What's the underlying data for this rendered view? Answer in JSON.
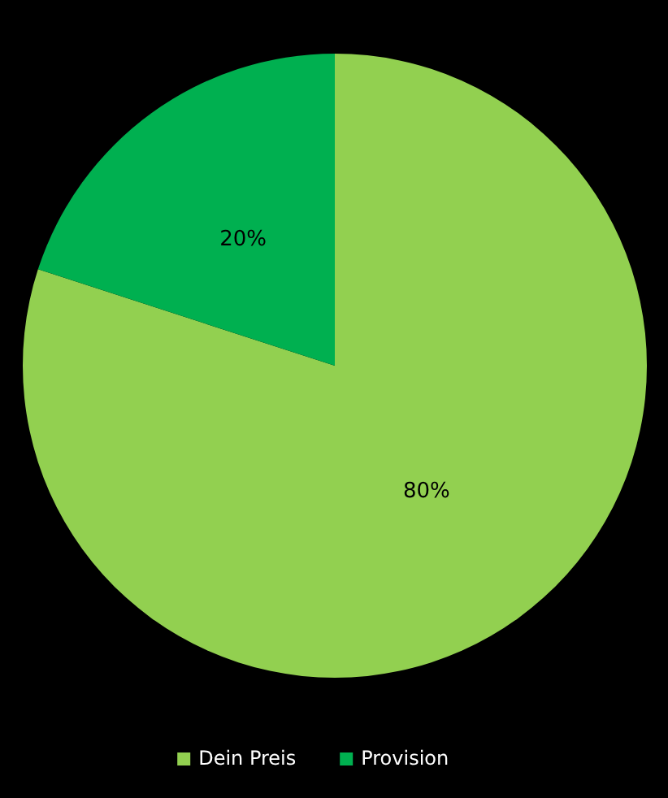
{
  "chart_data": {
    "type": "pie",
    "categories": [
      "Dein Preis",
      "Provision"
    ],
    "values": [
      80,
      20
    ],
    "colors": [
      "#92d050",
      "#00b050"
    ],
    "value_labels": [
      "80%",
      "20%"
    ],
    "legend": "bottom"
  }
}
